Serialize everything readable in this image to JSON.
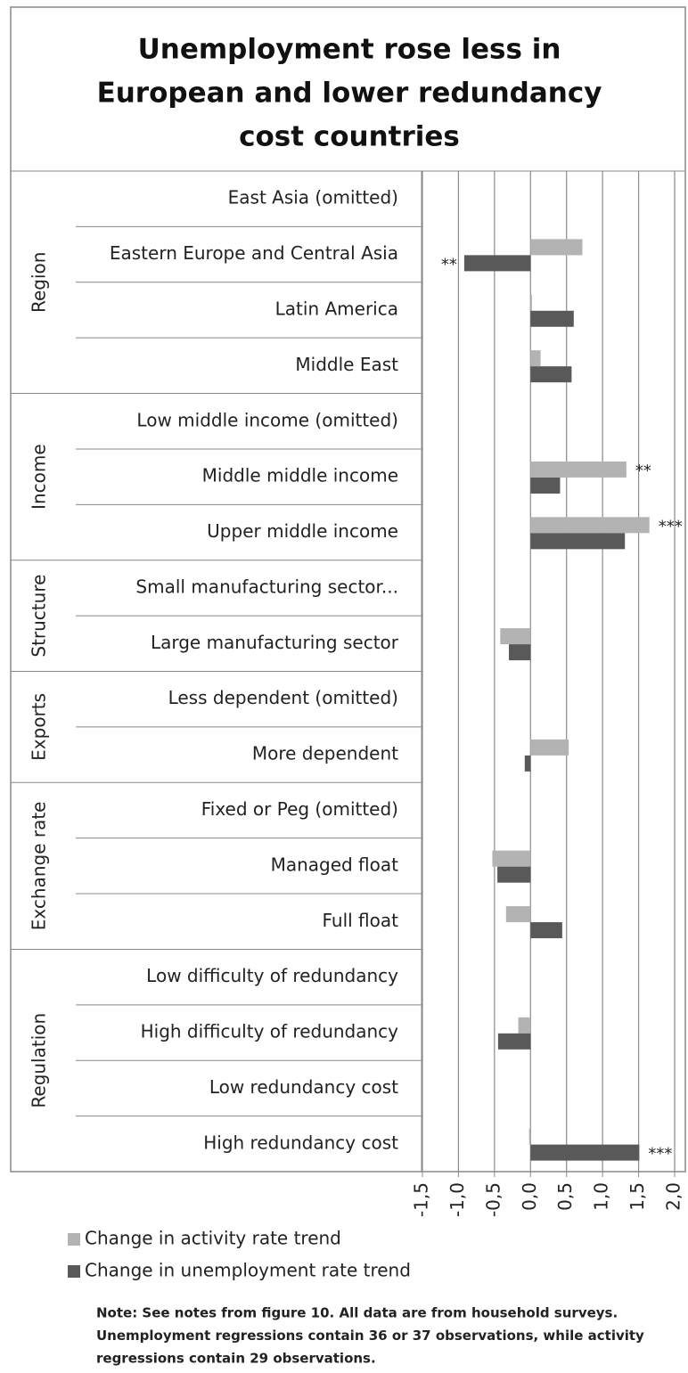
{
  "chart_data": {
    "type": "hbar",
    "title": [
      "Unemployment rose less in",
      "European and lower redundancy",
      "cost countries"
    ],
    "groups": [
      {
        "name": "Region",
        "categories": [
          "East Asia (omitted)",
          "Eastern Europe and Central Asia",
          "Latin America",
          "Middle East"
        ]
      },
      {
        "name": "Income",
        "categories": [
          "Low middle income (omitted)",
          "Middle middle income",
          "Upper middle income"
        ]
      },
      {
        "name": "Structure",
        "categories": [
          "Small manufacturing sector...",
          "Large manufacturing sector"
        ]
      },
      {
        "name": "Exports",
        "categories": [
          "Less dependent  (omitted)",
          "More dependent"
        ]
      },
      {
        "name": "Exchange rate",
        "categories": [
          "Fixed or Peg (omitted)",
          "Managed float",
          "Full float"
        ]
      },
      {
        "name": "Regulation",
        "categories": [
          "Low difficulty of redundancy",
          "High difficulty of redundancy",
          "Low redundancy cost",
          "High redundancy cost"
        ]
      }
    ],
    "series": [
      {
        "name": "Change in activity rate trend",
        "color": "#b3b3b3",
        "values": [
          null,
          0.72,
          0.02,
          0.14,
          null,
          1.33,
          1.65,
          null,
          -0.42,
          null,
          0.53,
          null,
          -0.53,
          -0.34,
          null,
          -0.17,
          null,
          -0.02
        ],
        "significance": [
          null,
          null,
          null,
          null,
          null,
          "**",
          "***",
          null,
          null,
          null,
          null,
          null,
          null,
          null,
          null,
          null,
          null,
          null
        ]
      },
      {
        "name": "Change in unemployment rate trend",
        "color": "#595959",
        "values": [
          null,
          -0.92,
          0.6,
          0.57,
          null,
          0.41,
          1.31,
          null,
          -0.3,
          null,
          -0.08,
          null,
          -0.46,
          0.44,
          null,
          -0.45,
          null,
          1.51
        ],
        "significance": [
          null,
          "**",
          null,
          null,
          null,
          null,
          null,
          null,
          null,
          null,
          null,
          null,
          null,
          null,
          null,
          null,
          null,
          "***"
        ]
      }
    ],
    "xlim": [
      -1.5,
      2.0
    ],
    "xticks": [
      {
        "value": -1.5,
        "label": "-1,5"
      },
      {
        "value": -1.0,
        "label": "-1,0"
      },
      {
        "value": -0.5,
        "label": "-0,5"
      },
      {
        "value": 0.0,
        "label": "0,0"
      },
      {
        "value": 0.5,
        "label": "0,5"
      },
      {
        "value": 1.0,
        "label": "1,0"
      },
      {
        "value": 1.5,
        "label": "1,5"
      },
      {
        "value": 2.0,
        "label": "2,0"
      }
    ],
    "grid": true,
    "legend": "bottom-left",
    "note": [
      "Note: See notes from figure 10. All data are from household surveys.",
      "Unemployment regressions contain 36 or 37  observations, while activity",
      "regressions contain 29 observations."
    ]
  }
}
